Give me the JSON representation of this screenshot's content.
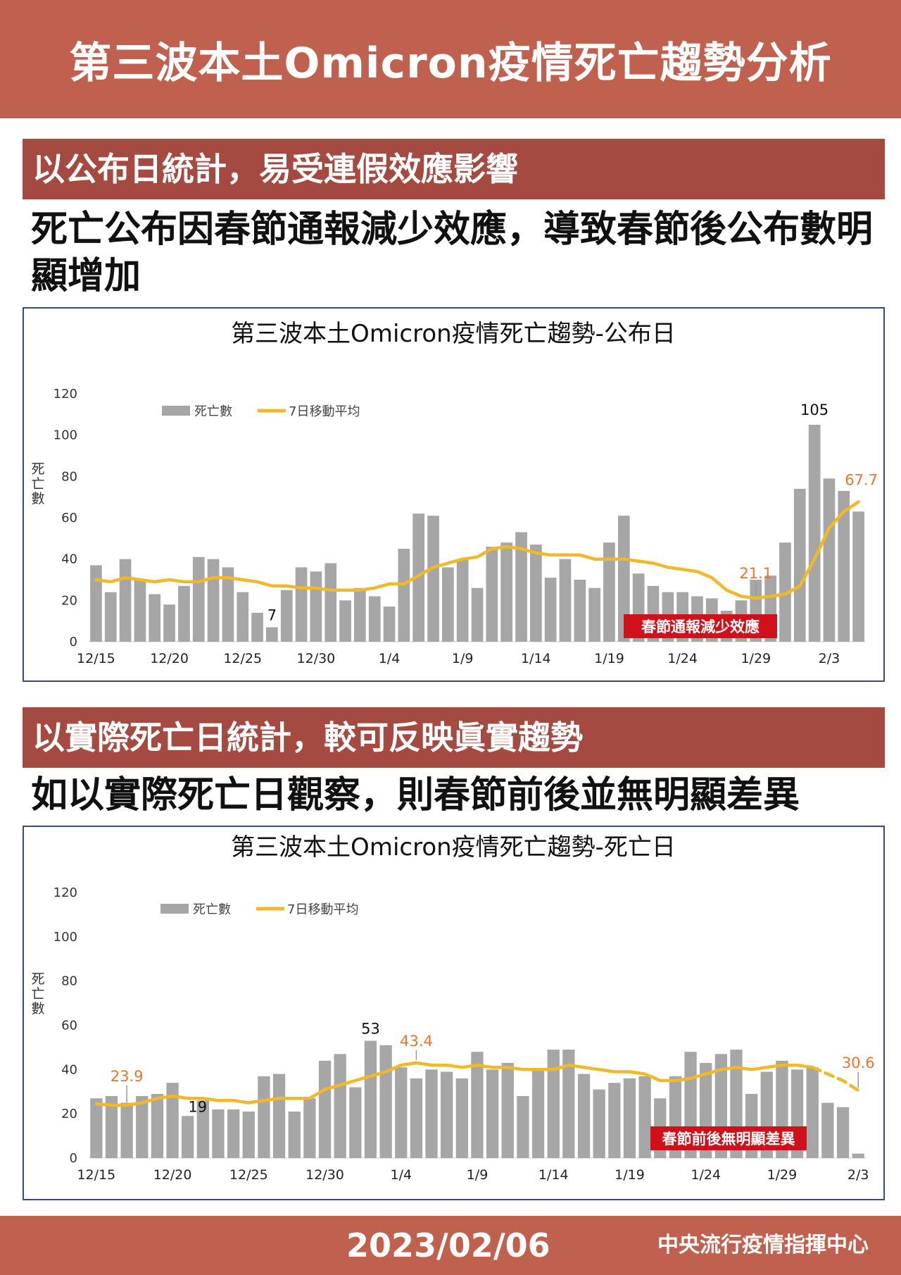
{
  "header": {
    "title": "第三波本土Omicron疫情死亡趨勢分析"
  },
  "section1": {
    "bar_title": "以公布日統計，易受連假效應影響",
    "headline": "死亡公布因春節通報減少效應，導致春節後公布數明顯增加"
  },
  "section2": {
    "bar_title": "以實際死亡日統計，較可反映眞實趨勢",
    "headline": "如以實際死亡日觀察，則春節前後並無明顯差異"
  },
  "footer": {
    "date": "2023/02/06",
    "org": "中央流行疫情指揮中心"
  },
  "colors": {
    "bar": "#a6a6a6",
    "line": "#f2b825",
    "highlight": "#e8762c",
    "callout_bg": "#d0111b",
    "brand": "#c0604f"
  },
  "chart_data": [
    {
      "type": "bar",
      "title": "第三波本土Omicron疫情死亡趨勢-公布日",
      "ylabel": "死亡數",
      "xlabel": "",
      "ylim": [
        0,
        120
      ],
      "yticks": [
        0,
        20,
        40,
        60,
        80,
        100,
        120
      ],
      "x_tick_labels": [
        "12/15",
        "12/20",
        "12/25",
        "12/30",
        "1/4",
        "1/9",
        "1/14",
        "1/19",
        "1/24",
        "1/29",
        "2/3"
      ],
      "x_tick_index": [
        0,
        5,
        10,
        15,
        20,
        25,
        30,
        35,
        40,
        45,
        50
      ],
      "legend": {
        "bar": "死亡數",
        "line": "7日移動平均"
      },
      "series": [
        {
          "name": "死亡數",
          "type": "bar",
          "values": [
            37,
            24,
            40,
            30,
            23,
            18,
            27,
            41,
            40,
            36,
            24,
            14,
            7,
            25,
            36,
            34,
            38,
            20,
            26,
            22,
            17,
            45,
            62,
            61,
            36,
            40,
            26,
            46,
            48,
            53,
            47,
            31,
            40,
            30,
            26,
            48,
            61,
            33,
            27,
            24,
            24,
            22,
            21,
            15,
            20,
            30,
            32,
            48,
            74,
            105,
            79,
            73,
            63
          ]
        },
        {
          "name": "7日移動平均",
          "type": "line",
          "values": [
            30,
            29,
            31,
            30,
            29,
            30,
            29,
            29,
            31,
            31,
            30,
            29,
            27,
            27,
            26,
            26,
            25,
            25,
            25,
            26,
            28,
            28,
            32,
            36,
            38,
            40,
            41,
            45,
            46,
            45,
            43,
            42,
            42,
            42,
            40,
            40,
            40,
            39,
            38,
            36,
            35,
            34,
            31,
            25,
            22,
            21.1,
            22,
            23,
            27,
            40,
            55,
            63,
            67.7
          ]
        }
      ],
      "annotations": [
        {
          "text": "105",
          "index": 49,
          "series": "死亡數"
        },
        {
          "text": "7",
          "index": 12,
          "series": "死亡數"
        },
        {
          "text": "21.1",
          "index": 45,
          "series": "7日移動平均"
        },
        {
          "text": "67.7",
          "index": 52,
          "series": "7日移動平均"
        }
      ],
      "callout": "春節通報減少效應"
    },
    {
      "type": "bar",
      "title": "第三波本土Omicron疫情死亡趨勢-死亡日",
      "ylabel": "死亡數",
      "xlabel": "",
      "ylim": [
        0,
        120
      ],
      "yticks": [
        0,
        20,
        40,
        60,
        80,
        100,
        120
      ],
      "x_tick_labels": [
        "12/15",
        "12/20",
        "12/25",
        "12/30",
        "1/4",
        "1/9",
        "1/14",
        "1/19",
        "1/24",
        "1/29",
        "2/3"
      ],
      "x_tick_index": [
        0,
        5,
        10,
        15,
        20,
        25,
        30,
        35,
        40,
        45,
        50
      ],
      "legend": {
        "bar": "死亡數",
        "line": "7日移動平均"
      },
      "series": [
        {
          "name": "死亡數",
          "type": "bar",
          "values": [
            27,
            28,
            25,
            28,
            29,
            34,
            19,
            26,
            22,
            22,
            21,
            37,
            38,
            21,
            27,
            44,
            47,
            32,
            53,
            51,
            41,
            36,
            40,
            39,
            36,
            48,
            40,
            43,
            28,
            40,
            49,
            49,
            38,
            31,
            34,
            36,
            37,
            27,
            37,
            48,
            43,
            47,
            49,
            29,
            39,
            44,
            40,
            41,
            25,
            23,
            2
          ]
        },
        {
          "name": "7日移動平均",
          "type": "line",
          "values": [
            24.5,
            23.9,
            23.9,
            25,
            27,
            28,
            27,
            27,
            26,
            26,
            25,
            26,
            27,
            27,
            27,
            31,
            33,
            35,
            37,
            39,
            42,
            43,
            42,
            42,
            41,
            42,
            41,
            41,
            40,
            40,
            40,
            42,
            41,
            40,
            39,
            39,
            38,
            35,
            35,
            36,
            38,
            40,
            41,
            40,
            41,
            42,
            42,
            41,
            38,
            35,
            30.6
          ],
          "dashed_from_index": 47
        }
      ],
      "annotations": [
        {
          "text": "53",
          "index": 18,
          "series": "死亡數"
        },
        {
          "text": "19",
          "index": 6,
          "series": "死亡數"
        },
        {
          "text": "23.9",
          "index": 2,
          "series": "7日移動平均"
        },
        {
          "text": "43.4",
          "index": 21,
          "series": "7日移動平均"
        },
        {
          "text": "30.6",
          "index": 50,
          "series": "7日移動平均"
        }
      ],
      "callout": "春節前後無明顯差異"
    }
  ]
}
